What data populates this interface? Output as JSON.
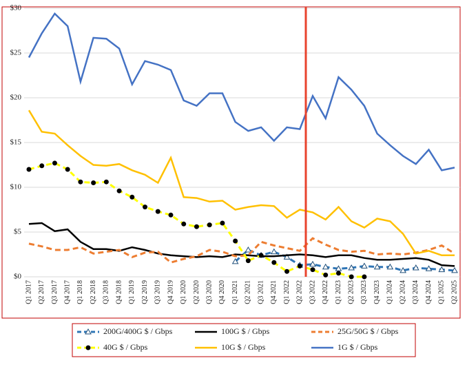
{
  "chart_data": {
    "type": "line",
    "categories": [
      "Q1 2017",
      "Q2 2017",
      "Q3 2017",
      "Q4 2017",
      "Q1 2018",
      "Q2 2018",
      "Q3 2018",
      "Q4 2018",
      "Q1 2019",
      "Q2 2019",
      "Q3 2019",
      "Q4 2019",
      "Q1 2020",
      "Q2 2020",
      "Q3 2020",
      "Q4 2020",
      "Q1 2021",
      "Q2 2021",
      "Q3 2021",
      "Q4 2021",
      "Q1 2022",
      "Q2 2022",
      "Q3 2022",
      "Q4 2022",
      "Q1 2023",
      "Q2 2023",
      "Q3 2023",
      "Q4 2023",
      "Q1 2024",
      "Q2 2024",
      "Q3 2024",
      "Q4 2024",
      "Q1 2025",
      "Q2 2025"
    ],
    "ylim": [
      0,
      30
    ],
    "yticks": [
      {
        "value": 0,
        "label": "$0"
      },
      {
        "value": 5,
        "label": "$5"
      },
      {
        "value": 10,
        "label": "$10"
      },
      {
        "value": 15,
        "label": "$15"
      },
      {
        "value": 20,
        "label": "$20"
      },
      {
        "value": 25,
        "label": "$25"
      },
      {
        "value": 30,
        "label": "$30"
      }
    ],
    "grid": true,
    "series": [
      {
        "name": "200G/400G $ / Gbps",
        "color": "#2e75b6",
        "dash": true,
        "marker": "triangle",
        "values": [
          null,
          null,
          null,
          null,
          null,
          null,
          null,
          null,
          null,
          null,
          null,
          null,
          null,
          null,
          null,
          null,
          1.7,
          3.0,
          2.4,
          2.8,
          2.2,
          1.3,
          1.4,
          1.1,
          0.9,
          1.0,
          1.2,
          1.1,
          1.1,
          0.7,
          1.0,
          0.9,
          0.8,
          0.7
        ]
      },
      {
        "name": "100G $ / Gbps",
        "color": "#000000",
        "dash": false,
        "marker": null,
        "values": [
          5.9,
          6.0,
          5.1,
          5.3,
          3.9,
          3.1,
          3.1,
          2.9,
          3.3,
          3.0,
          2.6,
          2.4,
          2.3,
          2.2,
          2.3,
          2.2,
          2.5,
          2.4,
          2.3,
          2.3,
          2.4,
          2.5,
          2.4,
          2.2,
          2.4,
          2.4,
          2.1,
          1.9,
          1.9,
          2.0,
          2.1,
          1.9,
          1.3,
          1.2
        ]
      },
      {
        "name": "25G/50G $ / Gbps",
        "color": "#ed7d31",
        "dash": true,
        "marker": null,
        "values": [
          3.7,
          3.4,
          3.0,
          3.0,
          3.3,
          2.6,
          2.8,
          3.0,
          2.2,
          2.7,
          2.8,
          1.6,
          2.0,
          2.3,
          3.0,
          2.8,
          2.3,
          2.4,
          3.9,
          3.5,
          3.2,
          2.9,
          4.3,
          3.6,
          3.0,
          2.8,
          2.9,
          2.5,
          2.6,
          2.5,
          2.7,
          3.0,
          3.5,
          2.6
        ]
      },
      {
        "name": "40G $ / Gbps",
        "color": "#ffff00",
        "dash": true,
        "marker": "circle",
        "values": [
          12.0,
          12.4,
          12.7,
          12.0,
          10.6,
          10.5,
          10.6,
          9.6,
          8.9,
          7.8,
          7.3,
          6.9,
          5.9,
          5.6,
          5.8,
          6.0,
          4.0,
          1.8,
          2.4,
          1.6,
          0.6,
          1.2,
          0.8,
          0.2,
          0.4,
          0.0,
          0.0,
          null,
          null,
          null,
          null,
          null,
          null,
          null
        ]
      },
      {
        "name": "10G $ / Gbps",
        "color": "#ffc000",
        "dash": false,
        "marker": null,
        "values": [
          18.6,
          16.2,
          16.0,
          14.7,
          13.5,
          12.5,
          12.4,
          12.6,
          11.9,
          11.4,
          10.5,
          13.3,
          8.9,
          8.8,
          8.4,
          8.5,
          7.5,
          7.8,
          8.0,
          7.9,
          6.6,
          7.5,
          7.2,
          6.4,
          7.8,
          6.2,
          5.5,
          6.5,
          6.2,
          4.8,
          2.6,
          2.9,
          2.4,
          2.4
        ]
      },
      {
        "name": "1G $ / Gbps",
        "color": "#4472c4",
        "dash": false,
        "marker": null,
        "values": [
          24.5,
          27.2,
          29.4,
          28.0,
          21.8,
          26.7,
          26.6,
          25.5,
          21.5,
          24.1,
          23.7,
          23.1,
          19.7,
          19.1,
          20.5,
          20.5,
          17.3,
          16.3,
          16.7,
          15.2,
          16.7,
          16.5,
          20.2,
          17.7,
          22.3,
          20.9,
          19.1,
          16.0,
          14.7,
          13.5,
          12.6,
          14.2,
          11.9,
          12.2
        ]
      }
    ]
  }
}
